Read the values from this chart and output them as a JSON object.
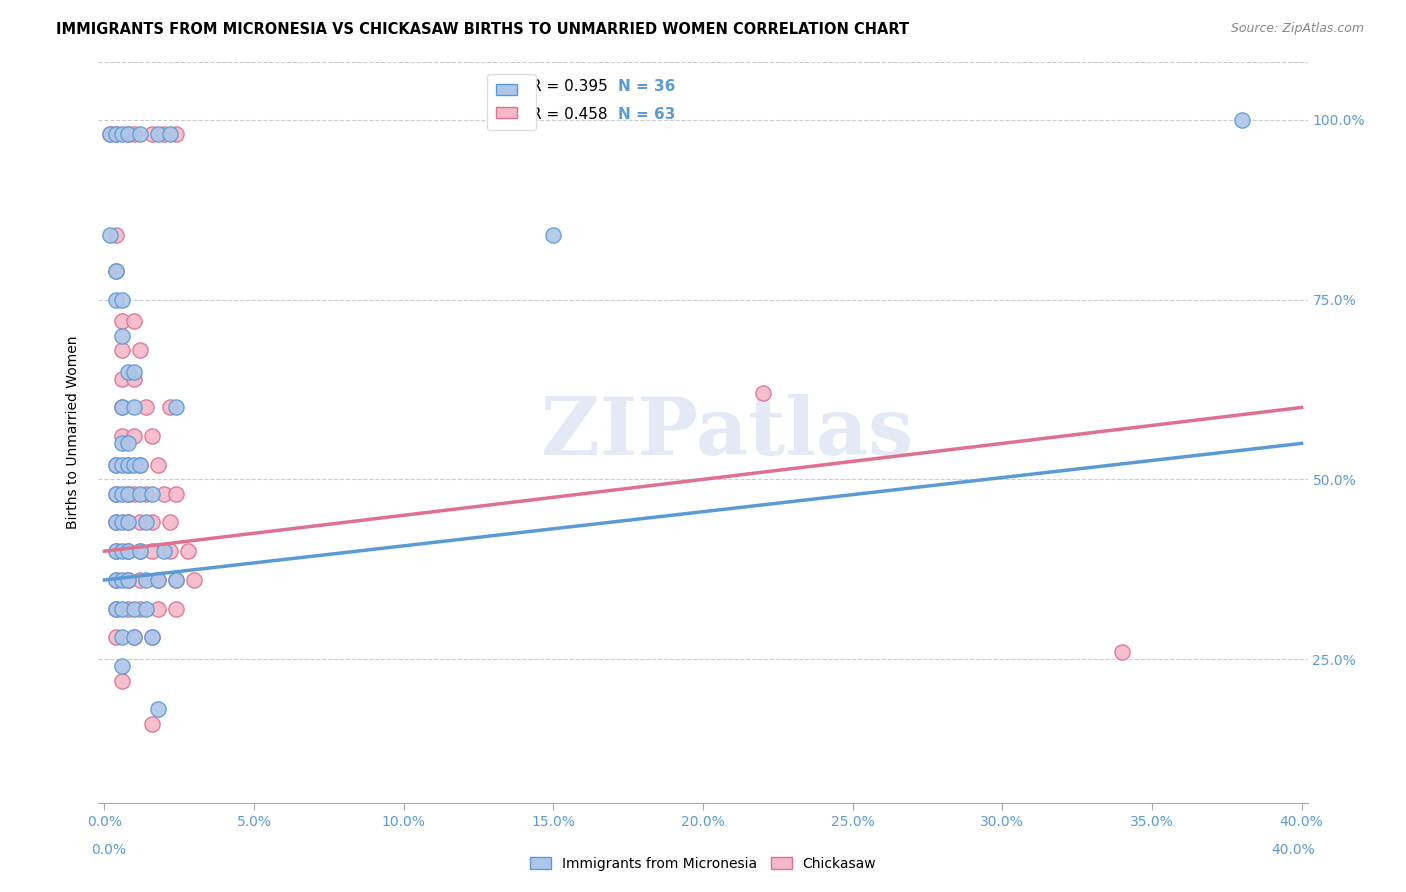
{
  "title": "IMMIGRANTS FROM MICRONESIA VS CHICKASAW BIRTHS TO UNMARRIED WOMEN CORRELATION CHART",
  "source": "Source: ZipAtlas.com",
  "ylabel": "Births to Unmarried Women",
  "ytick_vals": [
    0.25,
    0.5,
    0.75,
    1.0
  ],
  "ytick_labels": [
    "25.0%",
    "50.0%",
    "75.0%",
    "100.0%"
  ],
  "xtick_vals": [
    0.0,
    0.05,
    0.1,
    0.15,
    0.2,
    0.25,
    0.3,
    0.35,
    0.4
  ],
  "xtick_labels": [
    "0.0%",
    "5.0%",
    "10.0%",
    "15.0%",
    "20.0%",
    "25.0%",
    "30.0%",
    "35.0%",
    "40.0%"
  ],
  "legend_blue_label": "Immigrants from Micronesia",
  "legend_pink_label": "Chickasaw",
  "watermark": "ZIPatlas",
  "blue_fill": "#aec6e8",
  "blue_edge": "#5b9bd5",
  "pink_fill": "#f4b8c8",
  "pink_edge": "#e07090",
  "blue_line_color": "#5b9bd5",
  "pink_line_color": "#e07090",
  "tick_color": "#5b9bd5",
  "blue_scatter": [
    [
      0.002,
      0.98
    ],
    [
      0.004,
      0.98
    ],
    [
      0.006,
      0.98
    ],
    [
      0.008,
      0.98
    ],
    [
      0.012,
      0.98
    ],
    [
      0.018,
      0.98
    ],
    [
      0.022,
      0.98
    ],
    [
      0.002,
      0.84
    ],
    [
      0.004,
      0.79
    ],
    [
      0.004,
      0.75
    ],
    [
      0.006,
      0.75
    ],
    [
      0.006,
      0.7
    ],
    [
      0.008,
      0.65
    ],
    [
      0.01,
      0.65
    ],
    [
      0.006,
      0.6
    ],
    [
      0.01,
      0.6
    ],
    [
      0.024,
      0.6
    ],
    [
      0.006,
      0.55
    ],
    [
      0.008,
      0.55
    ],
    [
      0.004,
      0.52
    ],
    [
      0.006,
      0.52
    ],
    [
      0.008,
      0.52
    ],
    [
      0.01,
      0.52
    ],
    [
      0.012,
      0.52
    ],
    [
      0.004,
      0.48
    ],
    [
      0.006,
      0.48
    ],
    [
      0.008,
      0.48
    ],
    [
      0.012,
      0.48
    ],
    [
      0.016,
      0.48
    ],
    [
      0.004,
      0.44
    ],
    [
      0.006,
      0.44
    ],
    [
      0.008,
      0.44
    ],
    [
      0.014,
      0.44
    ],
    [
      0.004,
      0.4
    ],
    [
      0.006,
      0.4
    ],
    [
      0.008,
      0.4
    ],
    [
      0.012,
      0.4
    ],
    [
      0.02,
      0.4
    ],
    [
      0.004,
      0.36
    ],
    [
      0.006,
      0.36
    ],
    [
      0.008,
      0.36
    ],
    [
      0.014,
      0.36
    ],
    [
      0.018,
      0.36
    ],
    [
      0.024,
      0.36
    ],
    [
      0.004,
      0.32
    ],
    [
      0.006,
      0.32
    ],
    [
      0.01,
      0.32
    ],
    [
      0.014,
      0.32
    ],
    [
      0.006,
      0.28
    ],
    [
      0.01,
      0.28
    ],
    [
      0.016,
      0.28
    ],
    [
      0.006,
      0.24
    ],
    [
      0.018,
      0.18
    ],
    [
      0.15,
      0.84
    ],
    [
      0.38,
      1.0
    ]
  ],
  "pink_scatter": [
    [
      0.002,
      0.98
    ],
    [
      0.004,
      0.98
    ],
    [
      0.008,
      0.98
    ],
    [
      0.01,
      0.98
    ],
    [
      0.016,
      0.98
    ],
    [
      0.02,
      0.98
    ],
    [
      0.024,
      0.98
    ],
    [
      0.004,
      0.84
    ],
    [
      0.004,
      0.79
    ],
    [
      0.006,
      0.72
    ],
    [
      0.01,
      0.72
    ],
    [
      0.006,
      0.68
    ],
    [
      0.012,
      0.68
    ],
    [
      0.006,
      0.64
    ],
    [
      0.01,
      0.64
    ],
    [
      0.006,
      0.6
    ],
    [
      0.014,
      0.6
    ],
    [
      0.022,
      0.6
    ],
    [
      0.006,
      0.56
    ],
    [
      0.01,
      0.56
    ],
    [
      0.016,
      0.56
    ],
    [
      0.004,
      0.52
    ],
    [
      0.008,
      0.52
    ],
    [
      0.012,
      0.52
    ],
    [
      0.018,
      0.52
    ],
    [
      0.004,
      0.48
    ],
    [
      0.008,
      0.48
    ],
    [
      0.01,
      0.48
    ],
    [
      0.014,
      0.48
    ],
    [
      0.02,
      0.48
    ],
    [
      0.024,
      0.48
    ],
    [
      0.004,
      0.44
    ],
    [
      0.008,
      0.44
    ],
    [
      0.012,
      0.44
    ],
    [
      0.016,
      0.44
    ],
    [
      0.022,
      0.44
    ],
    [
      0.004,
      0.4
    ],
    [
      0.008,
      0.4
    ],
    [
      0.012,
      0.4
    ],
    [
      0.016,
      0.4
    ],
    [
      0.022,
      0.4
    ],
    [
      0.028,
      0.4
    ],
    [
      0.004,
      0.36
    ],
    [
      0.008,
      0.36
    ],
    [
      0.012,
      0.36
    ],
    [
      0.018,
      0.36
    ],
    [
      0.024,
      0.36
    ],
    [
      0.03,
      0.36
    ],
    [
      0.004,
      0.32
    ],
    [
      0.008,
      0.32
    ],
    [
      0.012,
      0.32
    ],
    [
      0.018,
      0.32
    ],
    [
      0.024,
      0.32
    ],
    [
      0.004,
      0.28
    ],
    [
      0.01,
      0.28
    ],
    [
      0.016,
      0.28
    ],
    [
      0.006,
      0.22
    ],
    [
      0.016,
      0.16
    ],
    [
      0.22,
      0.62
    ],
    [
      0.34,
      0.26
    ]
  ],
  "blue_line_x": [
    0.0,
    0.4
  ],
  "blue_line_y": [
    0.36,
    0.55
  ],
  "pink_line_x": [
    0.0,
    0.4
  ],
  "pink_line_y": [
    0.4,
    0.6
  ],
  "xmin": -0.002,
  "xmax": 0.402,
  "ymin": 0.05,
  "ymax": 1.08
}
